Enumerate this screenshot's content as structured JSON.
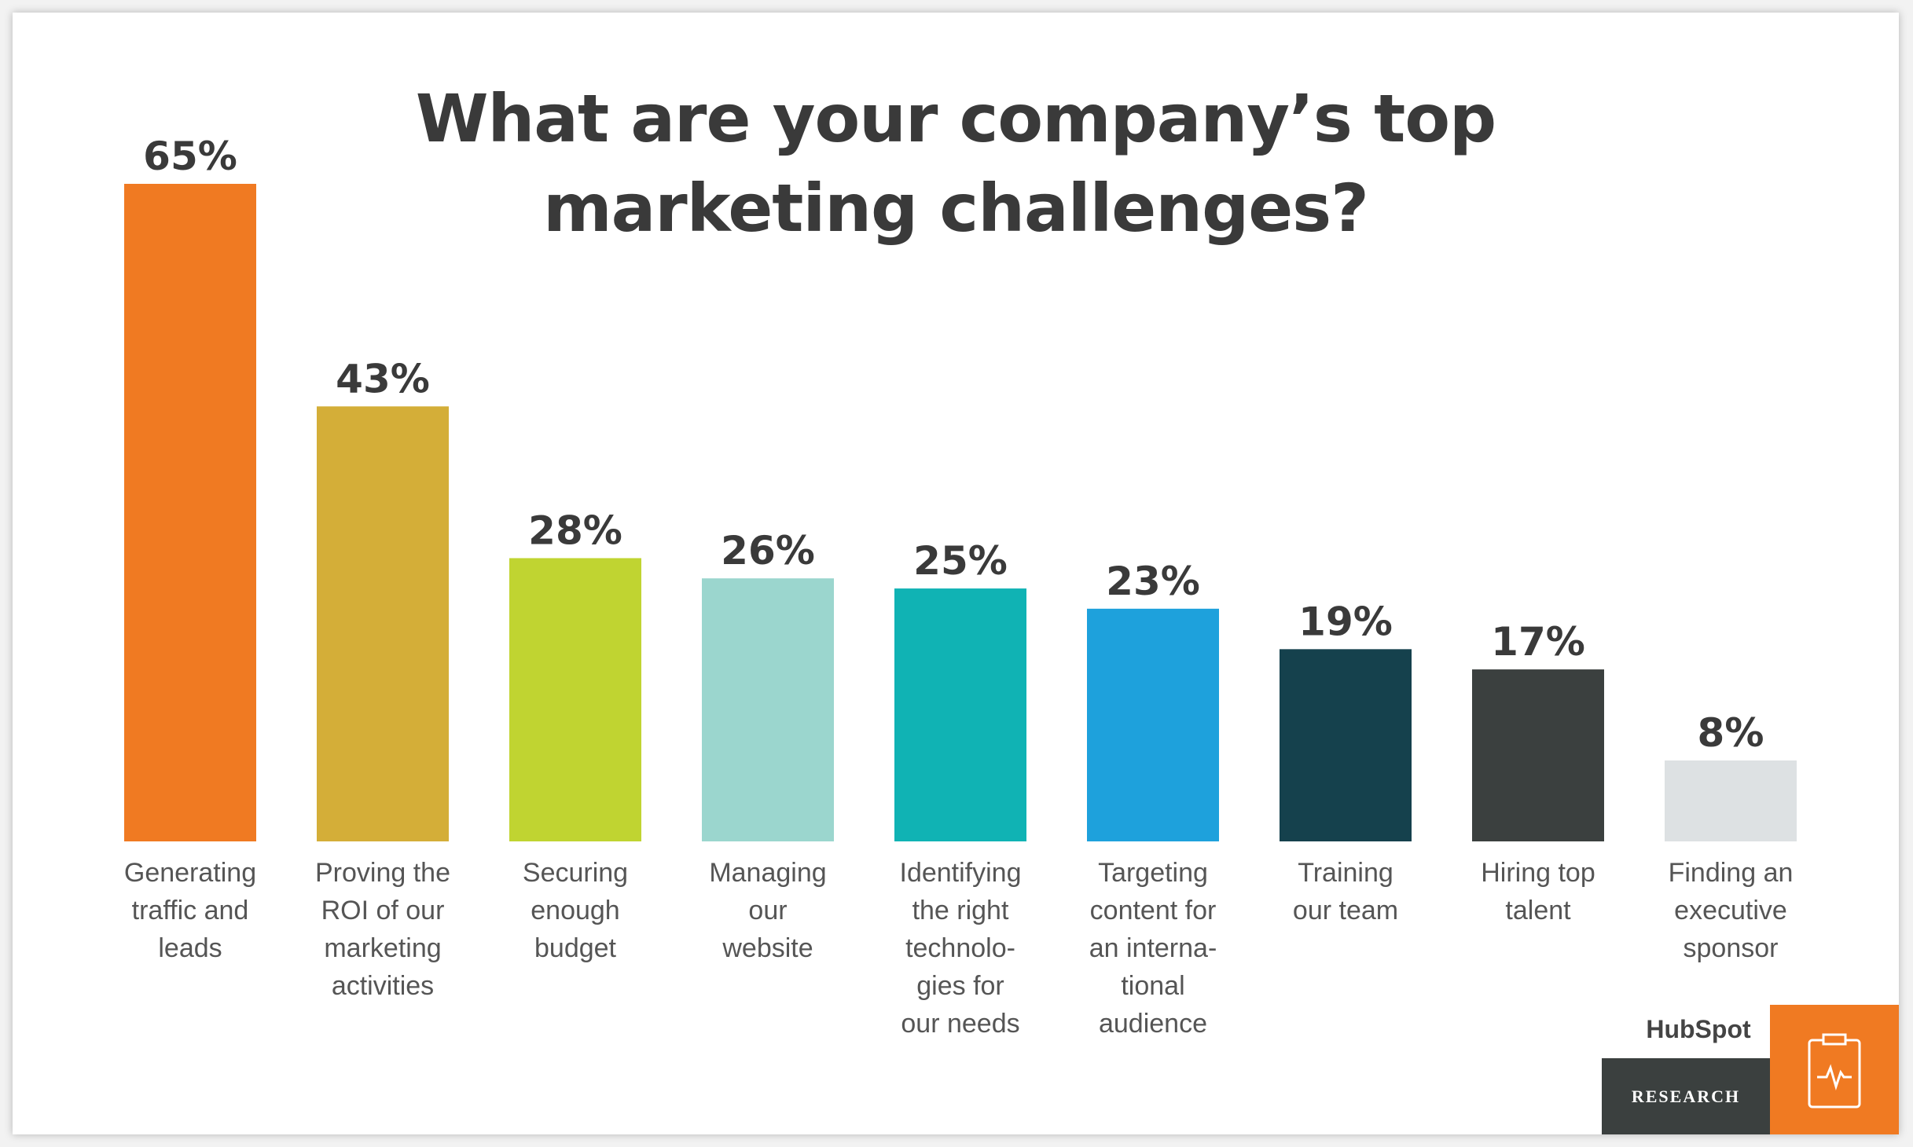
{
  "chart_data": {
    "type": "bar",
    "title": "What are your company’s top\nmarketing challenges?",
    "categories": [
      "Generating\ntraffic and\nleads",
      "Proving the\nROI of our\nmarketing\nactivities",
      "Securing\nenough\nbudget",
      "Managing\nour\nwebsite",
      "Identifying\nthe right\ntechnolo-\ngies for\nour needs",
      "Targeting\ncontent for\nan interna-\ntional\naudience",
      "Training\nour team",
      "Hiring top\ntalent",
      "Finding an\nexecutive\nsponsor"
    ],
    "values": [
      65,
      43,
      28,
      26,
      25,
      23,
      19,
      17,
      8
    ],
    "value_labels": [
      "65%",
      "43%",
      "28%",
      "26%",
      "25%",
      "23%",
      "19%",
      "17%",
      "8%"
    ],
    "colors": [
      "#f07a22",
      "#d4ae38",
      "#c0d431",
      "#9bd6ce",
      "#10b3b4",
      "#1ea1dc",
      "#15414d",
      "#3b403f",
      "#dde1e3"
    ],
    "grid": false
  },
  "footer": {
    "logo": "HubSpot",
    "label": "RESEARCH"
  }
}
